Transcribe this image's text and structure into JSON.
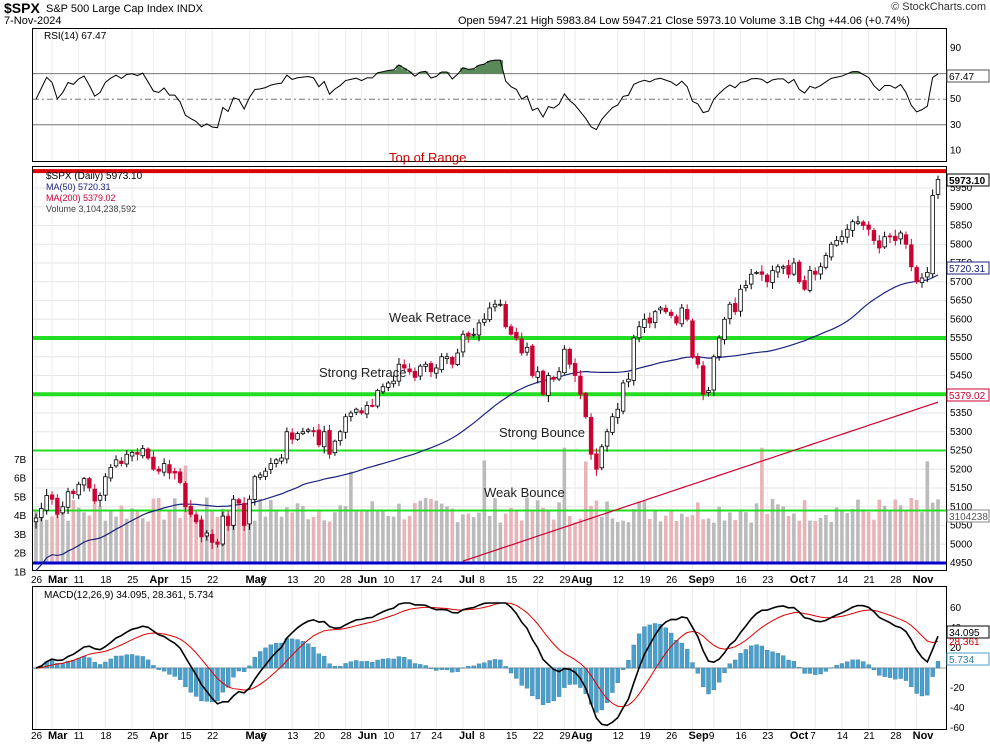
{
  "header": {
    "symbol": "$SPX",
    "name": "S&P 500 Large Cap Index",
    "exchange": "INDX",
    "date": "7-Nov-2024",
    "ohlc": "Open 5947.21  High 5983.84  Low 5947.21  Close 5973.10  Volume 3.1B  Chg +44.06 (+0.74%)",
    "open": "5947.21",
    "high": "5983.84",
    "low": "5947.21",
    "close": "5973.10",
    "volume": "3.1B",
    "change": "+44.06 (+0.74%)",
    "copyright": "© StockCharts.com"
  },
  "colors": {
    "up": "#ffffff",
    "down": "#cc0033",
    "ma50": "#1a237e",
    "ma200": "#cc0033",
    "support": "#22dd22",
    "top_range": "#dd0000",
    "bottom_line": "#0000cc",
    "rsi_fill": "#5a8a5a",
    "macd": "#000000",
    "signal": "#dd0000",
    "hist": "#4aa0cc"
  },
  "rsi_panel": {
    "legend": "RSI(14) 67.47",
    "value_label": "67.47",
    "ticks": [
      "90",
      "70",
      "50",
      "30",
      "10"
    ]
  },
  "price_panel": {
    "legend": {
      "price": "$SPX (Daily) 5973.10",
      "ma50": "MA(50) 5720.31",
      "ma200": "MA(200) 5379.02",
      "volume": "Volume 3,104,238,592"
    },
    "price_tags": {
      "close": "5973.10",
      "ma50": "5720.31",
      "ma200": "5379.02",
      "volume": "3104238"
    },
    "price_ticks": [
      "5950",
      "5900",
      "5850",
      "5800",
      "5750",
      "5700",
      "5650",
      "5600",
      "5550",
      "5500",
      "5450",
      "5400",
      "5350",
      "5300",
      "5250",
      "5200",
      "5150",
      "5100",
      "5050",
      "5000",
      "4950"
    ],
    "volume_ticks": [
      "7B",
      "6B",
      "5B",
      "4B",
      "3B",
      "2B",
      "1B"
    ],
    "annotations": [
      {
        "text": "Top of Range",
        "level": 5995,
        "color": "red"
      },
      {
        "text": "Weak Retrace",
        "level": 5550,
        "color": "green"
      },
      {
        "text": "Strong Retrace",
        "level": 5400,
        "color": "green"
      },
      {
        "text": "Strong Bounce",
        "level": 5250,
        "color": "green"
      },
      {
        "text": "Weak Bounce",
        "level": 5090,
        "color": "green"
      }
    ]
  },
  "macd_panel": {
    "legend": "MACD(12,26,9) 34.095, 28.361, 5.734",
    "macd_label": "34.095",
    "signal_label": "28.361",
    "hist_label": "5.734",
    "ticks": [
      "60",
      "40",
      "20",
      "-20",
      "-40",
      "-60"
    ]
  },
  "x_axis": [
    {
      "label": "26",
      "i": 0
    },
    {
      "label": "Mar",
      "i": 3,
      "bold": true
    },
    {
      "label": "11",
      "i": 8
    },
    {
      "label": "18",
      "i": 13
    },
    {
      "label": "25",
      "i": 18
    },
    {
      "label": "Apr",
      "i": 22,
      "bold": true
    },
    {
      "label": "15",
      "i": 28
    },
    {
      "label": "22",
      "i": 33
    },
    {
      "label": "May",
      "i": 40,
      "bold": true
    },
    {
      "label": "6",
      "i": 43
    },
    {
      "label": "13",
      "i": 48
    },
    {
      "label": "20",
      "i": 53
    },
    {
      "label": "28",
      "i": 58
    },
    {
      "label": "Jun",
      "i": 61,
      "bold": true
    },
    {
      "label": "10",
      "i": 66
    },
    {
      "label": "17",
      "i": 71
    },
    {
      "label": "24",
      "i": 75
    },
    {
      "label": "Jul",
      "i": 80,
      "bold": true
    },
    {
      "label": "8",
      "i": 84
    },
    {
      "label": "15",
      "i": 89
    },
    {
      "label": "22",
      "i": 94
    },
    {
      "label": "29",
      "i": 99
    },
    {
      "label": "Aug",
      "i": 101,
      "bold": true
    },
    {
      "label": "12",
      "i": 109
    },
    {
      "label": "19",
      "i": 114
    },
    {
      "label": "26",
      "i": 119
    },
    {
      "label": "Sep",
      "i": 123,
      "bold": true
    },
    {
      "label": "9",
      "i": 127
    },
    {
      "label": "16",
      "i": 132
    },
    {
      "label": "23",
      "i": 137
    },
    {
      "label": "Oct",
      "i": 142,
      "bold": true
    },
    {
      "label": "7",
      "i": 146
    },
    {
      "label": "14",
      "i": 151
    },
    {
      "label": "21",
      "i": 156
    },
    {
      "label": "28",
      "i": 161
    },
    {
      "label": "Nov",
      "i": 165,
      "bold": true
    }
  ],
  "chart_data": {
    "type": "candlestick",
    "title": "$SPX S&P 500 Large Cap Index",
    "ylim": [
      4940,
      6030
    ],
    "close": [
      5070,
      5095,
      5130,
      5120,
      5080,
      5100,
      5140,
      5135,
      5160,
      5175,
      5150,
      5115,
      5130,
      5180,
      5205,
      5225,
      5215,
      5240,
      5245,
      5240,
      5255,
      5230,
      5200,
      5195,
      5215,
      5190,
      5190,
      5165,
      5100,
      5080,
      5060,
      5020,
      5030,
      5005,
      5000,
      5075,
      5050,
      5120,
      5110,
      5050,
      5120,
      5180,
      5185,
      5195,
      5215,
      5225,
      5230,
      5300,
      5280,
      5295,
      5300,
      5305,
      5300,
      5265,
      5300,
      5240,
      5275,
      5300,
      5340,
      5350,
      5360,
      5350,
      5370,
      5370,
      5410,
      5420,
      5430,
      5435,
      5480,
      5470,
      5460,
      5445,
      5475,
      5480,
      5460,
      5470,
      5500,
      5500,
      5480,
      5510,
      5560,
      5555,
      5560,
      5590,
      5600,
      5630,
      5640,
      5640,
      5580,
      5560,
      5550,
      5510,
      5525,
      5450,
      5460,
      5400,
      5450,
      5440,
      5460,
      5520,
      5480,
      5450,
      5400,
      5340,
      5240,
      5200,
      5260,
      5300,
      5340,
      5360,
      5430,
      5440,
      5550,
      5580,
      5600,
      5590,
      5620,
      5630,
      5620,
      5610,
      5590,
      5630,
      5600,
      5500,
      5480,
      5400,
      5410,
      5500,
      5550,
      5600,
      5640,
      5620,
      5680,
      5690,
      5720,
      5725,
      5720,
      5700,
      5730,
      5740,
      5740,
      5720,
      5750,
      5700,
      5680,
      5730,
      5720,
      5740,
      5770,
      5800,
      5810,
      5820,
      5840,
      5860,
      5860,
      5850,
      5840,
      5810,
      5790,
      5820,
      5820,
      5810,
      5830,
      5800,
      5740,
      5700,
      5710,
      5725,
      5930,
      5973
    ]
  }
}
